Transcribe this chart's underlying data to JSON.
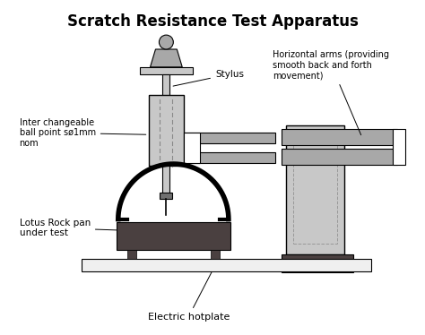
{
  "title": "Scratch Resistance Test Apparatus",
  "title_fontsize": 12,
  "title_fontweight": "bold",
  "background_color": "#ffffff",
  "border_color": "#000000",
  "light_gray": "#c8c8c8",
  "mid_gray": "#a8a8a8",
  "dark_color": "#4a4040",
  "hotplate_color": "#f0f0f0",
  "labels": {
    "stylus": "Stylus",
    "inter_changeable": "Inter changeable\nball point sø1mm\nnom",
    "lotus": "Lotus Rock pan\nunder test",
    "hotplate": "Electric hotplate",
    "horizontal_arms": "Horizontal arms (providing\nsmooth back and forth\nmovement)"
  }
}
